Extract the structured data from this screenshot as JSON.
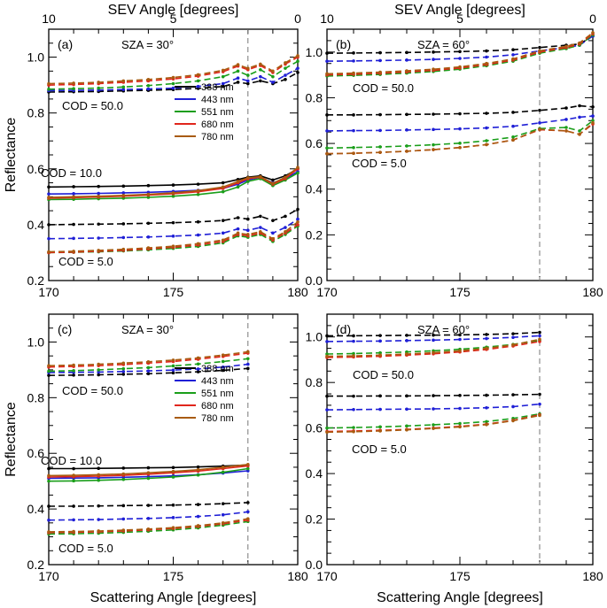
{
  "figure": {
    "ylabel": "Reflectance",
    "xlabel": "Scattering Angle [degrees]",
    "top_axis_label": "SEV Angle [degrees]",
    "wavelengths": [
      "388 nm",
      "443 nm",
      "551 nm",
      "680 nm",
      "780 nm"
    ],
    "colors": {
      "388 nm": "#000000",
      "443 nm": "#1f1fd6",
      "551 nm": "#1a9e1a",
      "680 nm": "#e0261c",
      "780 nm": "#a85b10"
    }
  },
  "chart_data": [
    {
      "type": "line",
      "panel_label": "(a)",
      "title": "SZA = 30°",
      "xlabel": "",
      "ylabel": "Reflectance",
      "top_xlabel": "SEV Angle [degrees]",
      "top_ticks": [
        "10",
        "5",
        "0"
      ],
      "xlim": [
        170,
        180
      ],
      "ylim": [
        0.2,
        1.1
      ],
      "xticks": [
        170,
        175,
        180
      ],
      "yticks": [
        0.2,
        0.4,
        0.6,
        0.8,
        1.0
      ],
      "vline_x": 178,
      "legend": true,
      "annotations": [
        "COD = 50.0",
        "COD = 10.0",
        "COD = 5.0"
      ],
      "x": [
        170,
        171,
        172,
        173,
        174,
        175,
        176,
        177,
        177.6,
        178,
        178.5,
        179,
        179.5,
        180
      ],
      "series": [
        {
          "name": "388 nm",
          "cod": "COD = 50.0",
          "values": [
            0.875,
            0.876,
            0.877,
            0.879,
            0.881,
            0.884,
            0.888,
            0.895,
            0.91,
            0.905,
            0.915,
            0.905,
            0.92,
            0.945
          ]
        },
        {
          "name": "443 nm",
          "cod": "COD = 50.0",
          "values": [
            0.88,
            0.881,
            0.882,
            0.884,
            0.886,
            0.889,
            0.895,
            0.905,
            0.925,
            0.915,
            0.93,
            0.91,
            0.935,
            0.96
          ]
        },
        {
          "name": "551 nm",
          "cod": "COD = 50.0",
          "values": [
            0.885,
            0.887,
            0.889,
            0.893,
            0.898,
            0.905,
            0.915,
            0.93,
            0.95,
            0.935,
            0.955,
            0.93,
            0.96,
            0.985
          ]
        },
        {
          "name": "680 nm",
          "cod": "COD = 50.0",
          "values": [
            0.9,
            0.902,
            0.905,
            0.91,
            0.915,
            0.922,
            0.932,
            0.948,
            0.968,
            0.955,
            0.97,
            0.945,
            0.975,
            1.0
          ]
        },
        {
          "name": "780 nm",
          "cod": "COD = 50.0",
          "values": [
            0.905,
            0.907,
            0.91,
            0.915,
            0.92,
            0.927,
            0.937,
            0.953,
            0.973,
            0.96,
            0.975,
            0.95,
            0.98,
            1.005
          ]
        },
        {
          "name": "388 nm",
          "cod": "COD = 10.0",
          "values": [
            0.535,
            0.536,
            0.537,
            0.538,
            0.54,
            0.542,
            0.545,
            0.55,
            0.562,
            0.57,
            0.575,
            0.56,
            0.575,
            0.6
          ]
        },
        {
          "name": "443 nm",
          "cod": "COD = 10.0",
          "values": [
            0.51,
            0.511,
            0.512,
            0.514,
            0.516,
            0.519,
            0.523,
            0.53,
            0.545,
            0.56,
            0.57,
            0.55,
            0.565,
            0.59
          ]
        },
        {
          "name": "551 nm",
          "cod": "COD = 10.0",
          "values": [
            0.49,
            0.491,
            0.493,
            0.495,
            0.498,
            0.502,
            0.508,
            0.518,
            0.535,
            0.555,
            0.565,
            0.54,
            0.56,
            0.585
          ]
        },
        {
          "name": "680 nm",
          "cod": "COD = 10.0",
          "values": [
            0.495,
            0.497,
            0.499,
            0.502,
            0.506,
            0.511,
            0.518,
            0.53,
            0.55,
            0.565,
            0.57,
            0.545,
            0.565,
            0.6
          ]
        },
        {
          "name": "780 nm",
          "cod": "COD = 10.0",
          "values": [
            0.498,
            0.5,
            0.502,
            0.505,
            0.509,
            0.514,
            0.522,
            0.535,
            0.555,
            0.568,
            0.572,
            0.548,
            0.57,
            0.605
          ]
        },
        {
          "name": "388 nm",
          "cod": "COD = 5.0",
          "values": [
            0.4,
            0.401,
            0.402,
            0.403,
            0.405,
            0.407,
            0.41,
            0.415,
            0.425,
            0.42,
            0.43,
            0.415,
            0.43,
            0.455
          ]
        },
        {
          "name": "443 nm",
          "cod": "COD = 5.0",
          "values": [
            0.35,
            0.351,
            0.352,
            0.354,
            0.356,
            0.359,
            0.363,
            0.37,
            0.385,
            0.38,
            0.39,
            0.37,
            0.39,
            0.42
          ]
        },
        {
          "name": "551 nm",
          "cod": "COD = 5.0",
          "values": [
            0.3,
            0.301,
            0.303,
            0.306,
            0.31,
            0.315,
            0.322,
            0.335,
            0.36,
            0.355,
            0.365,
            0.34,
            0.365,
            0.395
          ]
        },
        {
          "name": "680 nm",
          "cod": "COD = 5.0",
          "values": [
            0.3,
            0.302,
            0.305,
            0.308,
            0.313,
            0.319,
            0.327,
            0.34,
            0.365,
            0.36,
            0.37,
            0.345,
            0.37,
            0.4
          ]
        },
        {
          "name": "780 nm",
          "cod": "COD = 5.0",
          "values": [
            0.303,
            0.305,
            0.308,
            0.312,
            0.317,
            0.323,
            0.332,
            0.345,
            0.37,
            0.365,
            0.375,
            0.35,
            0.375,
            0.41
          ]
        }
      ]
    },
    {
      "type": "line",
      "panel_label": "(b)",
      "title": "SZA = 60°",
      "xlabel": "",
      "ylabel": "",
      "top_xlabel": "SEV Angle [degrees]",
      "top_ticks": [
        "10",
        "5",
        "0"
      ],
      "xlim": [
        170,
        180
      ],
      "ylim": [
        0.0,
        1.1
      ],
      "xticks": [
        170,
        175,
        180
      ],
      "yticks": [
        0.0,
        0.2,
        0.4,
        0.6,
        0.8,
        1.0
      ],
      "vline_x": 178,
      "legend": false,
      "annotations": [
        "COD = 50.0",
        "COD = 5.0"
      ],
      "x": [
        170,
        171,
        172,
        173,
        174,
        175,
        176,
        177,
        178,
        179,
        179.5,
        180
      ],
      "series": [
        {
          "name": "388 nm",
          "cod": "COD = 50.0",
          "values": [
            0.995,
            0.996,
            0.997,
            0.998,
            1.0,
            1.002,
            1.005,
            1.01,
            1.02,
            1.03,
            1.035,
            1.07
          ]
        },
        {
          "name": "443 nm",
          "cod": "COD = 50.0",
          "values": [
            0.96,
            0.961,
            0.963,
            0.965,
            0.968,
            0.972,
            0.978,
            0.988,
            1.005,
            1.02,
            1.03,
            1.07
          ]
        },
        {
          "name": "551 nm",
          "cod": "COD = 50.0",
          "values": [
            0.895,
            0.898,
            0.902,
            0.908,
            0.915,
            0.925,
            0.94,
            0.96,
            0.995,
            1.015,
            1.03,
            1.075
          ]
        },
        {
          "name": "680 nm",
          "cod": "COD = 50.0",
          "values": [
            0.9,
            0.903,
            0.907,
            0.913,
            0.92,
            0.93,
            0.945,
            0.965,
            1.0,
            1.02,
            1.035,
            1.08
          ]
        },
        {
          "name": "780 nm",
          "cod": "COD = 50.0",
          "values": [
            0.905,
            0.908,
            0.912,
            0.918,
            0.925,
            0.935,
            0.95,
            0.97,
            1.005,
            1.025,
            1.04,
            1.085
          ]
        },
        {
          "name": "388 nm",
          "cod": "COD = 5.0",
          "values": [
            0.725,
            0.725,
            0.726,
            0.727,
            0.728,
            0.73,
            0.732,
            0.736,
            0.745,
            0.755,
            0.765,
            0.76
          ]
        },
        {
          "name": "443 nm",
          "cod": "COD = 5.0",
          "values": [
            0.655,
            0.656,
            0.657,
            0.659,
            0.661,
            0.664,
            0.668,
            0.675,
            0.69,
            0.705,
            0.715,
            0.72
          ]
        },
        {
          "name": "551 nm",
          "cod": "COD = 5.0",
          "values": [
            0.58,
            0.582,
            0.585,
            0.589,
            0.594,
            0.601,
            0.612,
            0.628,
            0.665,
            0.67,
            0.655,
            0.7
          ]
        },
        {
          "name": "680 nm",
          "cod": "COD = 5.0",
          "values": [
            0.555,
            0.557,
            0.561,
            0.566,
            0.573,
            0.582,
            0.595,
            0.615,
            0.66,
            0.655,
            0.64,
            0.685
          ]
        },
        {
          "name": "780 nm",
          "cod": "COD = 5.0",
          "values": [
            0.555,
            0.557,
            0.561,
            0.566,
            0.573,
            0.582,
            0.595,
            0.615,
            0.662,
            0.655,
            0.64,
            0.69
          ]
        }
      ]
    },
    {
      "type": "line",
      "panel_label": "(c)",
      "title": "SZA = 30°",
      "xlabel": "Scattering Angle [degrees]",
      "ylabel": "Reflectance",
      "xlim": [
        170,
        180
      ],
      "ylim": [
        0.2,
        1.1
      ],
      "xticks": [
        170,
        175,
        180
      ],
      "yticks": [
        0.2,
        0.4,
        0.6,
        0.8,
        1.0
      ],
      "vline_x": 178,
      "legend": true,
      "annotations": [
        "COD = 50.0",
        "COD = 10.0",
        "COD = 5.0"
      ],
      "x": [
        170,
        171,
        172,
        173,
        174,
        175,
        176,
        177,
        178
      ],
      "series": [
        {
          "name": "388 nm",
          "cod": "COD = 50.0",
          "values": [
            0.88,
            0.881,
            0.882,
            0.884,
            0.886,
            0.889,
            0.893,
            0.898,
            0.905
          ]
        },
        {
          "name": "443 nm",
          "cod": "COD = 50.0",
          "values": [
            0.89,
            0.891,
            0.892,
            0.894,
            0.896,
            0.899,
            0.903,
            0.91,
            0.92
          ]
        },
        {
          "name": "551 nm",
          "cod": "COD = 50.0",
          "values": [
            0.895,
            0.897,
            0.9,
            0.904,
            0.908,
            0.914,
            0.921,
            0.93,
            0.94
          ]
        },
        {
          "name": "680 nm",
          "cod": "COD = 50.0",
          "values": [
            0.91,
            0.912,
            0.915,
            0.919,
            0.924,
            0.93,
            0.938,
            0.948,
            0.96
          ]
        },
        {
          "name": "780 nm",
          "cod": "COD = 50.0",
          "values": [
            0.915,
            0.917,
            0.92,
            0.924,
            0.929,
            0.935,
            0.943,
            0.953,
            0.965
          ]
        },
        {
          "name": "388 nm",
          "cod": "COD = 10.0",
          "values": [
            0.545,
            0.545,
            0.546,
            0.547,
            0.548,
            0.549,
            0.551,
            0.554,
            0.558
          ]
        },
        {
          "name": "443 nm",
          "cod": "COD = 10.0",
          "values": [
            0.51,
            0.511,
            0.512,
            0.514,
            0.516,
            0.519,
            0.523,
            0.529,
            0.537
          ]
        },
        {
          "name": "551 nm",
          "cod": "COD = 10.0",
          "values": [
            0.5,
            0.501,
            0.503,
            0.506,
            0.51,
            0.515,
            0.522,
            0.532,
            0.545
          ]
        },
        {
          "name": "680 nm",
          "cod": "COD = 10.0",
          "values": [
            0.515,
            0.516,
            0.518,
            0.521,
            0.525,
            0.53,
            0.536,
            0.545,
            0.555
          ]
        },
        {
          "name": "780 nm",
          "cod": "COD = 10.0",
          "values": [
            0.52,
            0.521,
            0.523,
            0.526,
            0.53,
            0.535,
            0.541,
            0.55,
            0.56
          ]
        },
        {
          "name": "388 nm",
          "cod": "COD = 5.0",
          "values": [
            0.41,
            0.41,
            0.411,
            0.412,
            0.413,
            0.414,
            0.416,
            0.419,
            0.423
          ]
        },
        {
          "name": "443 nm",
          "cod": "COD = 5.0",
          "values": [
            0.36,
            0.361,
            0.362,
            0.364,
            0.366,
            0.369,
            0.373,
            0.379,
            0.39
          ]
        },
        {
          "name": "551 nm",
          "cod": "COD = 5.0",
          "values": [
            0.31,
            0.311,
            0.313,
            0.316,
            0.32,
            0.325,
            0.332,
            0.342,
            0.355
          ]
        },
        {
          "name": "680 nm",
          "cod": "COD = 5.0",
          "values": [
            0.315,
            0.316,
            0.318,
            0.321,
            0.325,
            0.33,
            0.337,
            0.347,
            0.36
          ]
        },
        {
          "name": "780 nm",
          "cod": "COD = 5.0",
          "values": [
            0.318,
            0.319,
            0.321,
            0.324,
            0.328,
            0.333,
            0.34,
            0.35,
            0.365
          ]
        }
      ]
    },
    {
      "type": "line",
      "panel_label": "(d)",
      "title": "SZA = 60°",
      "xlabel": "Scattering Angle [degrees]",
      "ylabel": "",
      "xlim": [
        170,
        180
      ],
      "ylim": [
        0.0,
        1.1
      ],
      "xticks": [
        170,
        175,
        180
      ],
      "yticks": [
        0.0,
        0.2,
        0.4,
        0.6,
        0.8,
        1.0
      ],
      "vline_x": 178,
      "legend": false,
      "annotations": [
        "COD = 50.0",
        "COD = 5.0"
      ],
      "x": [
        170,
        171,
        172,
        173,
        174,
        175,
        176,
        177,
        178
      ],
      "series": [
        {
          "name": "388 nm",
          "cod": "COD = 50.0",
          "values": [
            1.005,
            1.005,
            1.006,
            1.007,
            1.008,
            1.009,
            1.011,
            1.014,
            1.02
          ]
        },
        {
          "name": "443 nm",
          "cod": "COD = 50.0",
          "values": [
            0.98,
            0.981,
            0.982,
            0.984,
            0.986,
            0.989,
            0.993,
            0.998,
            1.005
          ]
        },
        {
          "name": "551 nm",
          "cod": "COD = 50.0",
          "values": [
            0.925,
            0.927,
            0.93,
            0.934,
            0.939,
            0.946,
            0.955,
            0.967,
            0.985
          ]
        },
        {
          "name": "680 nm",
          "cod": "COD = 50.0",
          "values": [
            0.91,
            0.912,
            0.915,
            0.92,
            0.926,
            0.934,
            0.945,
            0.96,
            0.98
          ]
        },
        {
          "name": "780 nm",
          "cod": "COD = 50.0",
          "values": [
            0.915,
            0.917,
            0.92,
            0.925,
            0.931,
            0.939,
            0.95,
            0.965,
            0.99
          ]
        },
        {
          "name": "388 nm",
          "cod": "COD = 5.0",
          "values": [
            0.74,
            0.74,
            0.741,
            0.741,
            0.742,
            0.743,
            0.744,
            0.746,
            0.748
          ]
        },
        {
          "name": "443 nm",
          "cod": "COD = 5.0",
          "values": [
            0.68,
            0.681,
            0.682,
            0.683,
            0.684,
            0.686,
            0.689,
            0.694,
            0.705
          ]
        },
        {
          "name": "551 nm",
          "cod": "COD = 5.0",
          "values": [
            0.6,
            0.602,
            0.605,
            0.609,
            0.614,
            0.62,
            0.628,
            0.642,
            0.662
          ]
        },
        {
          "name": "680 nm",
          "cod": "COD = 5.0",
          "values": [
            0.585,
            0.587,
            0.59,
            0.594,
            0.6,
            0.607,
            0.617,
            0.634,
            0.658
          ]
        },
        {
          "name": "780 nm",
          "cod": "COD = 5.0",
          "values": [
            0.582,
            0.584,
            0.587,
            0.592,
            0.598,
            0.605,
            0.615,
            0.632,
            0.655
          ]
        }
      ]
    }
  ]
}
